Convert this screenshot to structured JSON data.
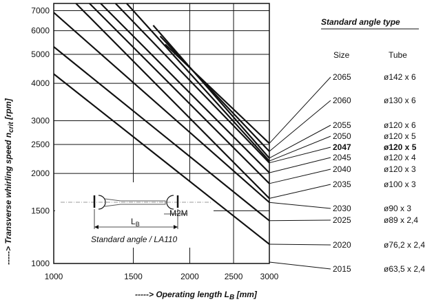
{
  "chart_data": {
    "type": "line",
    "title": "",
    "xlabel": "-----> Operating length L",
    "xlabel_sub": "B",
    "xlabel_unit": " [mm]",
    "ylabel": "-----> Transverse whirling speed n",
    "ylabel_sub": "crit",
    "ylabel_unit": " [rpm]",
    "x_scale": "log",
    "y_scale": "log",
    "xlim": [
      1000,
      3000
    ],
    "ylim": [
      1000,
      7400
    ],
    "x_ticks": [
      1000,
      1500,
      2000,
      2500,
      3000
    ],
    "x_tick_labels": [
      "1000",
      "1500",
      "2000",
      "2500",
      "3000"
    ],
    "y_ticks": [
      1000,
      1500,
      2000,
      2500,
      3000,
      4000,
      5000,
      6000,
      7000
    ],
    "y_tick_labels": [
      "1000",
      "1500",
      "2000",
      "2500",
      "3000",
      "4000",
      "5000",
      "6000",
      "7000"
    ],
    "grid": true,
    "legend_placement": "right",
    "legend": {
      "title": "Standard angle type",
      "col_size": "Size",
      "col_tube": "Tube",
      "entries": [
        {
          "size": "2065",
          "tube": "ø142 x 6",
          "bold": false
        },
        {
          "size": "2060",
          "tube": "ø130 x 6",
          "bold": false
        },
        {
          "size": "2055",
          "tube": "ø120 x 6",
          "bold": false
        },
        {
          "size": "2050",
          "tube": "ø120 x 5",
          "bold": false
        },
        {
          "size": "2047",
          "tube": "ø120 x 5",
          "bold": true
        },
        {
          "size": "2045",
          "tube": "ø120 x 4",
          "bold": false
        },
        {
          "size": "2040",
          "tube": "ø120 x 3",
          "bold": false
        },
        {
          "size": "2035",
          "tube": "ø100 x 3",
          "bold": false
        },
        {
          "size": "2030",
          "tube": "ø90 x 3",
          "bold": false
        },
        {
          "size": "2025",
          "tube": "ø89 x 2,4",
          "bold": false
        },
        {
          "size": "2020",
          "tube": "ø76,2 x 2,4",
          "bold": false
        },
        {
          "size": "2015",
          "tube": "ø63,5 x 2,4",
          "bold": false
        }
      ]
    },
    "series": [
      {
        "points": [
          [
            1765,
            5400
          ],
          [
            3000,
            2520
          ]
        ],
        "leader": "2065"
      },
      {
        "points": [
          [
            1720,
            5750
          ],
          [
            3000,
            2370
          ]
        ],
        "leader": "2060"
      },
      {
        "points": [
          [
            1660,
            6250
          ],
          [
            3000,
            2250
          ]
        ],
        "leader": "2055"
      },
      {
        "points": [
          [
            1450,
            7400
          ],
          [
            3000,
            2200
          ]
        ],
        "leader": "2050"
      },
      {
        "points": [
          [
            1370,
            7400
          ],
          [
            3000,
            2170
          ]
        ],
        "leader": "2047"
      },
      {
        "points": [
          [
            1270,
            7400
          ],
          [
            3000,
            2010
          ]
        ],
        "leader": "2045"
      },
      {
        "points": [
          [
            1200,
            7400
          ],
          [
            3000,
            1850
          ]
        ],
        "leader": "2040"
      },
      {
        "points": [
          [
            1120,
            7400
          ],
          [
            3000,
            1650
          ]
        ],
        "leader": "2035"
      },
      {
        "points": [
          [
            1000,
            6900
          ],
          [
            3000,
            1600
          ]
        ],
        "leader": "2030"
      },
      {
        "points": [
          [
            1000,
            5300
          ],
          [
            3000,
            1390
          ]
        ],
        "leader": "2025"
      },
      {
        "points": [
          [
            1000,
            4300
          ],
          [
            3000,
            1160
          ]
        ],
        "leader": "2020"
      }
    ],
    "annotations": {
      "inset_caption": "Standard angle / LA110",
      "inset_length_label": "L",
      "inset_length_sub": "B",
      "inset_dim_label": "M2M"
    }
  }
}
